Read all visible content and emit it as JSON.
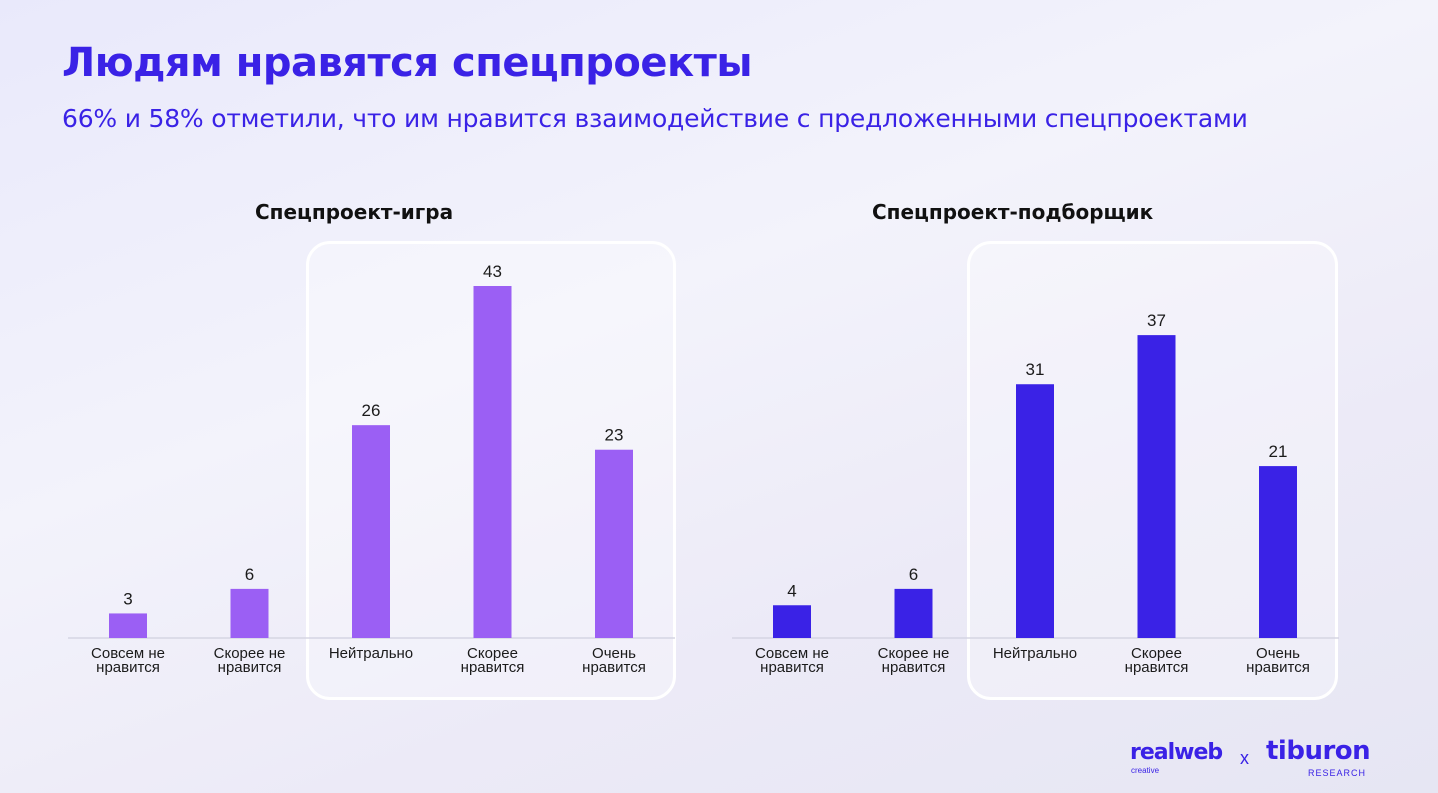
{
  "header": {
    "title": "Людям нравятся спецпроекты",
    "subtitle": "66% и 58% отметили, что им нравится взаимодействие с предложенными спецпроектами"
  },
  "colors": {
    "brand": "#3a22e6",
    "series_game": "#9b5ff4",
    "series_picker": "#3a22e6"
  },
  "chart_data": [
    {
      "type": "bar",
      "title": "Спецпроект-игра",
      "categories": [
        [
          "Совсем не",
          "нравится"
        ],
        [
          "Скорее не",
          "нравится"
        ],
        [
          "Нейтрально"
        ],
        [
          "Скорее",
          "нравится"
        ],
        [
          "Очень",
          "нравится"
        ]
      ],
      "values": [
        3,
        6,
        26,
        43,
        23
      ],
      "color": "#9b5ff4",
      "highlighted_categories": [
        "Нейтрально",
        "Скорее нравится",
        "Очень нравится"
      ],
      "grid": false
    },
    {
      "type": "bar",
      "title": "Спецпроект-подборщик",
      "categories": [
        [
          "Совсем не",
          "нравится"
        ],
        [
          "Скорее не",
          "нравится"
        ],
        [
          "Нейтрально"
        ],
        [
          "Скорее",
          "нравится"
        ],
        [
          "Очень",
          "нравится"
        ]
      ],
      "values": [
        4,
        6,
        31,
        37,
        21
      ],
      "color": "#3a22e6",
      "highlighted_categories": [
        "Нейтрально",
        "Скорее нравится",
        "Очень нравится"
      ],
      "grid": false
    }
  ],
  "footer": {
    "logo_left": "realweb",
    "logo_left_sub": "creative",
    "separator": "x",
    "logo_right": "tiburon",
    "logo_right_sub": "RESEARCH"
  }
}
